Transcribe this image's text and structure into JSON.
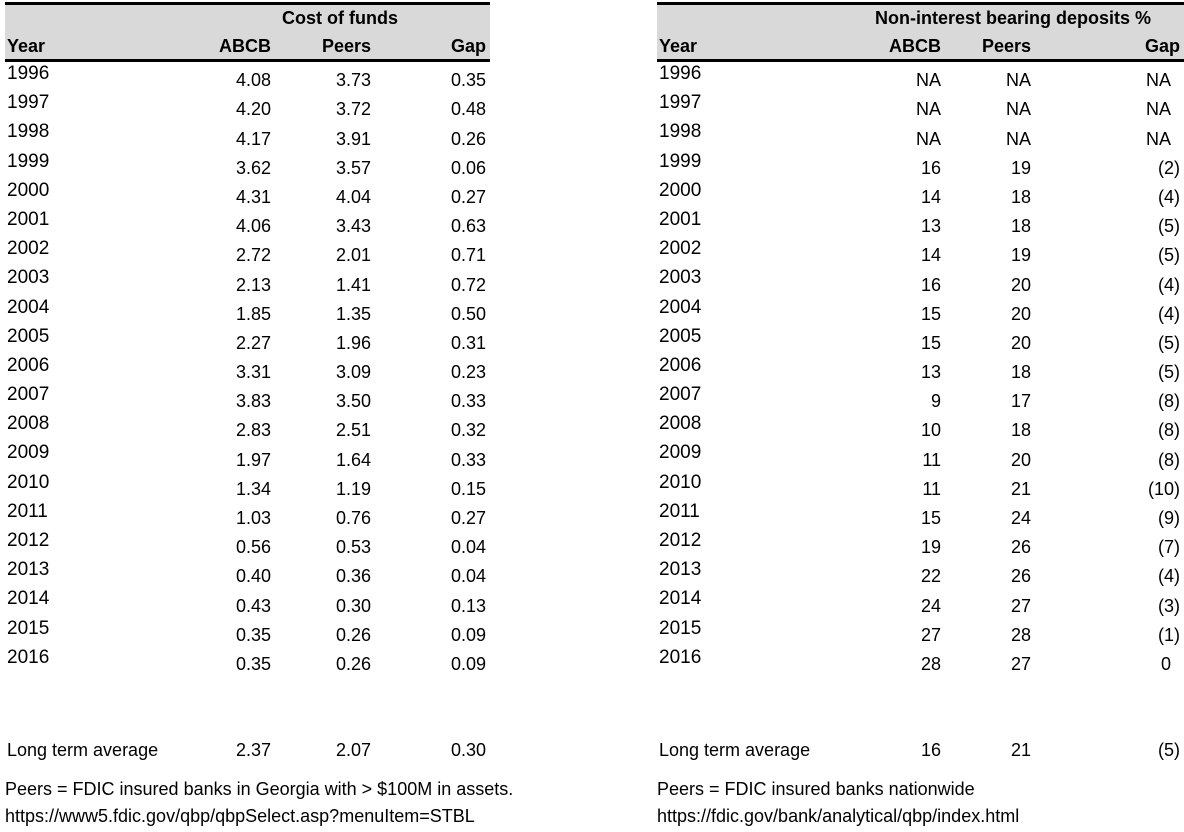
{
  "style": {
    "header_bg": "#d9d9d9",
    "border_color": "#000000",
    "text_color": "#000000",
    "background": "#ffffff"
  },
  "tables": [
    {
      "title": "Cost of funds",
      "columns": [
        "Year",
        "ABCB",
        "Peers",
        "Gap"
      ],
      "rows": [
        {
          "year": "1996",
          "abcb": "4.08",
          "peers": "3.73",
          "gap": "0.35"
        },
        {
          "year": "1997",
          "abcb": "4.20",
          "peers": "3.72",
          "gap": "0.48"
        },
        {
          "year": "1998",
          "abcb": "4.17",
          "peers": "3.91",
          "gap": "0.26"
        },
        {
          "year": "1999",
          "abcb": "3.62",
          "peers": "3.57",
          "gap": "0.06"
        },
        {
          "year": "2000",
          "abcb": "4.31",
          "peers": "4.04",
          "gap": "0.27"
        },
        {
          "year": "2001",
          "abcb": "4.06",
          "peers": "3.43",
          "gap": "0.63"
        },
        {
          "year": "2002",
          "abcb": "2.72",
          "peers": "2.01",
          "gap": "0.71"
        },
        {
          "year": "2003",
          "abcb": "2.13",
          "peers": "1.41",
          "gap": "0.72"
        },
        {
          "year": "2004",
          "abcb": "1.85",
          "peers": "1.35",
          "gap": "0.50"
        },
        {
          "year": "2005",
          "abcb": "2.27",
          "peers": "1.96",
          "gap": "0.31"
        },
        {
          "year": "2006",
          "abcb": "3.31",
          "peers": "3.09",
          "gap": "0.23"
        },
        {
          "year": "2007",
          "abcb": "3.83",
          "peers": "3.50",
          "gap": "0.33"
        },
        {
          "year": "2008",
          "abcb": "2.83",
          "peers": "2.51",
          "gap": "0.32"
        },
        {
          "year": "2009",
          "abcb": "1.97",
          "peers": "1.64",
          "gap": "0.33"
        },
        {
          "year": "2010",
          "abcb": "1.34",
          "peers": "1.19",
          "gap": "0.15"
        },
        {
          "year": "2011",
          "abcb": "1.03",
          "peers": "0.76",
          "gap": "0.27"
        },
        {
          "year": "2012",
          "abcb": "0.56",
          "peers": "0.53",
          "gap": "0.04"
        },
        {
          "year": "2013",
          "abcb": "0.40",
          "peers": "0.36",
          "gap": "0.04"
        },
        {
          "year": "2014",
          "abcb": "0.43",
          "peers": "0.30",
          "gap": "0.13"
        },
        {
          "year": "2015",
          "abcb": "0.35",
          "peers": "0.26",
          "gap": "0.09"
        },
        {
          "year": "2016",
          "abcb": "0.35",
          "peers": "0.26",
          "gap": "0.09"
        }
      ],
      "summary": {
        "label": "Long term average",
        "abcb": "2.37",
        "peers": "2.07",
        "gap": "0.30"
      },
      "footnotes": [
        "Peers = FDIC insured banks in Georgia with > $100M in assets.",
        "https://www5.fdic.gov/qbp/qbpSelect.asp?menuItem=STBL"
      ]
    },
    {
      "title": "Non-interest bearing deposits %",
      "columns": [
        "Year",
        "ABCB",
        "Peers",
        "Gap"
      ],
      "rows": [
        {
          "year": "1996",
          "abcb": "NA",
          "peers": "NA",
          "gap": "NA"
        },
        {
          "year": "1997",
          "abcb": "NA",
          "peers": "NA",
          "gap": "NA"
        },
        {
          "year": "1998",
          "abcb": "NA",
          "peers": "NA",
          "gap": "NA"
        },
        {
          "year": "1999",
          "abcb": "16",
          "peers": "19",
          "gap": "(2)"
        },
        {
          "year": "2000",
          "abcb": "14",
          "peers": "18",
          "gap": "(4)"
        },
        {
          "year": "2001",
          "abcb": "13",
          "peers": "18",
          "gap": "(5)"
        },
        {
          "year": "2002",
          "abcb": "14",
          "peers": "19",
          "gap": "(5)"
        },
        {
          "year": "2003",
          "abcb": "16",
          "peers": "20",
          "gap": "(4)"
        },
        {
          "year": "2004",
          "abcb": "15",
          "peers": "20",
          "gap": "(4)"
        },
        {
          "year": "2005",
          "abcb": "15",
          "peers": "20",
          "gap": "(5)"
        },
        {
          "year": "2006",
          "abcb": "13",
          "peers": "18",
          "gap": "(5)"
        },
        {
          "year": "2007",
          "abcb": "9",
          "peers": "17",
          "gap": "(8)"
        },
        {
          "year": "2008",
          "abcb": "10",
          "peers": "18",
          "gap": "(8)"
        },
        {
          "year": "2009",
          "abcb": "11",
          "peers": "20",
          "gap": "(8)"
        },
        {
          "year": "2010",
          "abcb": "11",
          "peers": "21",
          "gap": "(10)"
        },
        {
          "year": "2011",
          "abcb": "15",
          "peers": "24",
          "gap": "(9)"
        },
        {
          "year": "2012",
          "abcb": "19",
          "peers": "26",
          "gap": "(7)"
        },
        {
          "year": "2013",
          "abcb": "22",
          "peers": "26",
          "gap": "(4)"
        },
        {
          "year": "2014",
          "abcb": "24",
          "peers": "27",
          "gap": "(3)"
        },
        {
          "year": "2015",
          "abcb": "27",
          "peers": "28",
          "gap": "(1)"
        },
        {
          "year": "2016",
          "abcb": "28",
          "peers": "27",
          "gap": "0"
        }
      ],
      "summary": {
        "label": "Long term average",
        "abcb": "16",
        "peers": "21",
        "gap": "(5)"
      },
      "footnotes": [
        "Peers = FDIC insured banks nationwide",
        "https://fdic.gov/bank/analytical/qbp/index.html"
      ]
    }
  ]
}
